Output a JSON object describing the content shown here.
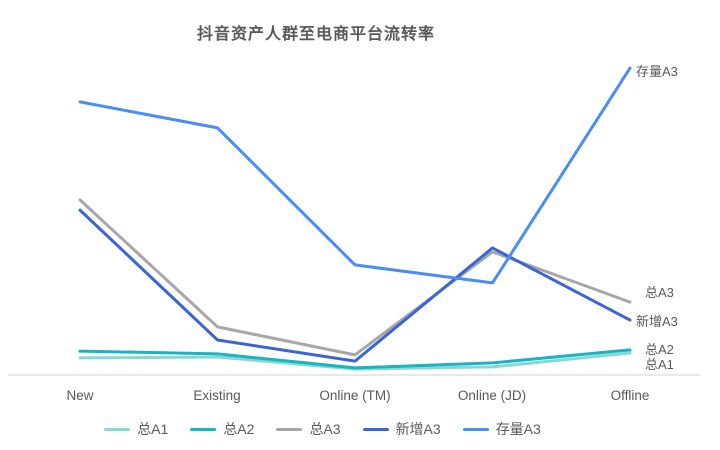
{
  "title": "抖音资产人群至电商平台流转率",
  "chart_data": {
    "type": "line",
    "title": "抖音资产人群至电商平台流转率",
    "categories": [
      "New",
      "Existing",
      "Online (TM)",
      "Online (JD)",
      "Offline"
    ],
    "series": [
      {
        "name": "总A1",
        "color": "#86d9d2",
        "values": [
          0.055,
          0.058,
          0.019,
          0.026,
          0.071
        ]
      },
      {
        "name": "总A2",
        "color": "#18b4c6",
        "values": [
          0.077,
          0.068,
          0.023,
          0.039,
          0.081
        ]
      },
      {
        "name": "总A3",
        "color": "#a7a7a7",
        "values": [
          0.565,
          0.155,
          0.065,
          0.397,
          0.235
        ]
      },
      {
        "name": "新增A3",
        "color": "#3b64d6",
        "values": [
          0.532,
          0.113,
          0.045,
          0.41,
          0.177
        ]
      },
      {
        "name": "存量A3",
        "color": "#4a8df5",
        "values": [
          0.881,
          0.797,
          0.355,
          0.297,
          0.99
        ]
      }
    ],
    "xlabel": "",
    "ylabel": "",
    "ylim": [
      0,
      1
    ],
    "grid": false,
    "legend_position": "bottom",
    "line_end_labels": [
      "存量A3",
      "总A3",
      "新增A3",
      "总A2",
      "总A1"
    ]
  }
}
